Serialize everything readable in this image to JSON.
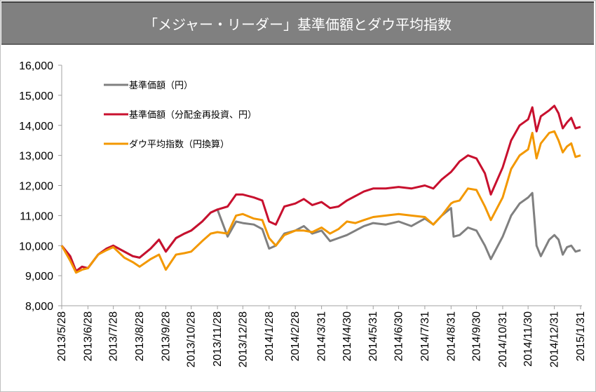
{
  "chart_data": {
    "type": "line",
    "title": "「メジャー・リーダー」基準価額とダウ平均指数",
    "ylim": [
      8000,
      16000
    ],
    "yticks": [
      "8,000",
      "9,000",
      "10,000",
      "11,000",
      "12,000",
      "13,000",
      "14,000",
      "15,000",
      "16,000"
    ],
    "xticks": [
      "2013/5/28",
      "2013/6/28",
      "2013/7/28",
      "2013/8/28",
      "2013/9/28",
      "2013/10/28",
      "2013/11/28",
      "2013/12/28",
      "2014/1/28",
      "2014/2/28",
      "2014/3/31",
      "2014/4/30",
      "2014/5/31",
      "2014/6/30",
      "2014/7/31",
      "2014/8/31",
      "2014/9/30",
      "2014/10/31",
      "2014/11/30",
      "2014/12/31",
      "2015/1/31"
    ],
    "grid": false,
    "legend_position": "top-left",
    "x": [
      "2013/5/28",
      "2013/6/7",
      "2013/6/14",
      "2013/6/21",
      "2013/6/28",
      "2013/7/10",
      "2013/7/20",
      "2013/7/28",
      "2013/8/10",
      "2013/8/20",
      "2013/8/28",
      "2013/9/10",
      "2013/9/20",
      "2013/9/28",
      "2013/10/10",
      "2013/10/20",
      "2013/10/28",
      "2013/11/10",
      "2013/11/20",
      "2013/11/28",
      "2013/12/10",
      "2013/12/20",
      "2013/12/28",
      "2014/1/10",
      "2014/1/20",
      "2014/1/28",
      "2014/2/5",
      "2014/2/15",
      "2014/2/28",
      "2014/3/10",
      "2014/3/20",
      "2014/3/31",
      "2014/4/10",
      "2014/4/20",
      "2014/4/30",
      "2014/5/10",
      "2014/5/20",
      "2014/5/31",
      "2014/6/15",
      "2014/6/30",
      "2014/7/15",
      "2014/7/31",
      "2014/8/10",
      "2014/8/20",
      "2014/8/31",
      "2014/9/3",
      "2014/9/10",
      "2014/9/20",
      "2014/9/30",
      "2014/10/10",
      "2014/10/17",
      "2014/10/31",
      "2014/11/10",
      "2014/11/20",
      "2014/11/30",
      "2014/12/5",
      "2014/12/10",
      "2014/12/15",
      "2014/12/25",
      "2014/12/31",
      "2015/1/5",
      "2015/1/10",
      "2015/1/15",
      "2015/1/20",
      "2015/1/25",
      "2015/1/31"
    ],
    "series": [
      {
        "name": "基準価額（円）",
        "color": "#808080",
        "values": [
          10000,
          9650,
          9150,
          9300,
          9250,
          9700,
          9900,
          10000,
          9800,
          9650,
          9600,
          9900,
          10200,
          9800,
          10250,
          10400,
          10500,
          10800,
          11100,
          11200,
          10300,
          10800,
          10750,
          10700,
          10550,
          9900,
          10000,
          10400,
          10500,
          10650,
          10400,
          10500,
          10150,
          10250,
          10350,
          10500,
          10650,
          10750,
          10700,
          10800,
          10650,
          10900,
          10700,
          11000,
          11250,
          10300,
          10350,
          10600,
          10500,
          10000,
          9550,
          10300,
          11000,
          11400,
          11600,
          11750,
          10000,
          9650,
          10200,
          10350,
          10200,
          9700,
          9950,
          10000,
          9800,
          9850
        ]
      },
      {
        "name": "基準価額（分配金再投資、円）",
        "color": "#c8102e",
        "values": [
          10000,
          9650,
          9150,
          9300,
          9250,
          9700,
          9900,
          10000,
          9800,
          9650,
          9600,
          9900,
          10200,
          9800,
          10250,
          10400,
          10500,
          10800,
          11100,
          11200,
          11300,
          11700,
          11700,
          11600,
          11500,
          10800,
          10700,
          11300,
          11400,
          11550,
          11350,
          11450,
          11250,
          11300,
          11500,
          11650,
          11800,
          11900,
          11900,
          11950,
          11900,
          12000,
          11900,
          12200,
          12450,
          12550,
          12800,
          13000,
          12900,
          12400,
          11700,
          12600,
          13500,
          14000,
          14200,
          14600,
          13800,
          14300,
          14500,
          14650,
          14400,
          13900,
          14100,
          14250,
          13900,
          13950
        ]
      },
      {
        "name": "ダウ平均指数（円換算）",
        "color": "#f39800",
        "values": [
          10000,
          9500,
          9100,
          9200,
          9250,
          9700,
          9850,
          9950,
          9600,
          9450,
          9300,
          9550,
          9700,
          9200,
          9700,
          9750,
          9800,
          10150,
          10400,
          10450,
          10400,
          11000,
          11050,
          10900,
          10850,
          10250,
          10000,
          10350,
          10500,
          10500,
          10450,
          10600,
          10400,
          10550,
          10800,
          10750,
          10850,
          10950,
          11000,
          11050,
          11000,
          10950,
          10700,
          11000,
          11400,
          11450,
          11500,
          11900,
          11850,
          11300,
          10850,
          11600,
          12550,
          13000,
          13200,
          13750,
          12900,
          13400,
          13750,
          13800,
          13500,
          13100,
          13300,
          13400,
          12950,
          13000
        ]
      }
    ]
  }
}
